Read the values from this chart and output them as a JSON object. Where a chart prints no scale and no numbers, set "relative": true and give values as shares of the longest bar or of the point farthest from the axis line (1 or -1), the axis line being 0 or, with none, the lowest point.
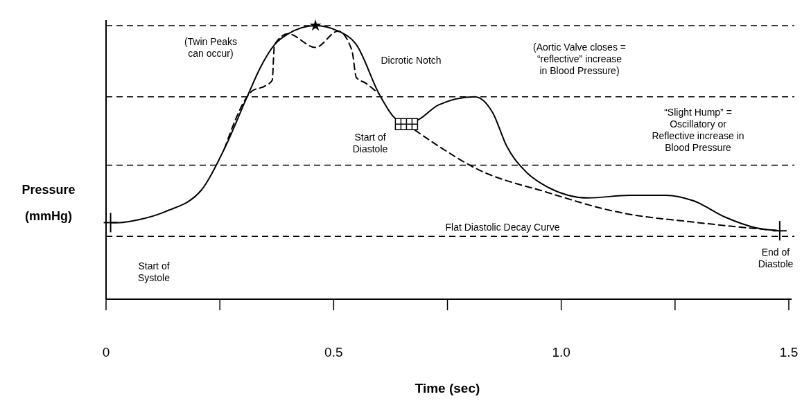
{
  "chart_data": {
    "type": "line",
    "relative": true,
    "xlabel": "Time (sec)",
    "ylabel": "Pressure\n(mmHg)",
    "xlim": [
      0,
      1.5
    ],
    "xticks": [
      0,
      {
        "value": 0.25,
        "label": null
      },
      0.5,
      {
        "value": 0.75,
        "label": null
      },
      {
        "value": 1.0,
        "label": "1.0"
      },
      {
        "value": 1.25,
        "label": null
      },
      1.5
    ],
    "marker": "none",
    "series": [
      {
        "color": "#000000",
        "line_style": "solid",
        "x": [
          0.01,
          0.03,
          0.07,
          0.13,
          0.21,
          0.26,
          0.31,
          0.34,
          0.37,
          0.4,
          0.46,
          0.51,
          0.55,
          0.6,
          0.63,
          0.66,
          0.69,
          0.73,
          0.81,
          0.85,
          0.88,
          0.92,
          0.97,
          1.06,
          1.15,
          1.23,
          1.29,
          1.36,
          1.43,
          1.48
        ],
        "values": [
          0.28,
          0.28,
          0.29,
          0.32,
          0.4,
          0.55,
          0.74,
          0.85,
          0.93,
          0.97,
          1.0,
          0.98,
          0.93,
          0.75,
          0.67,
          0.64,
          0.66,
          0.71,
          0.74,
          0.68,
          0.56,
          0.47,
          0.41,
          0.37,
          0.38,
          0.38,
          0.36,
          0.3,
          0.26,
          0.25
        ]
      },
      {
        "color": "#000000",
        "line_style": "dashed",
        "x": [
          0.26,
          0.31,
          0.32,
          0.35,
          0.365,
          0.37,
          0.4,
          0.46,
          0.51,
          0.54,
          0.55,
          0.57,
          0.6
        ],
        "values": [
          0.55,
          0.74,
          0.76,
          0.78,
          0.8,
          0.93,
          0.97,
          0.92,
          0.98,
          0.91,
          0.81,
          0.79,
          0.75
        ]
      },
      {
        "color": "#000000",
        "line_style": "dashed",
        "x": [
          0.66,
          0.73,
          0.81,
          0.97,
          1.12,
          1.3,
          1.48
        ],
        "values": [
          0.64,
          0.56,
          0.48,
          0.39,
          0.32,
          0.28,
          0.25
        ]
      }
    ],
    "ref_lines": [
      {
        "axis": "y",
        "value": 1.0,
        "color": "#000000",
        "line_style": "dashed"
      },
      {
        "axis": "y",
        "value": 0.74,
        "color": "#000000",
        "line_style": "dashed"
      },
      {
        "axis": "y",
        "value": 0.49,
        "color": "#000000",
        "line_style": "dashed"
      },
      {
        "axis": "y",
        "value": 0.23,
        "color": "#000000",
        "line_style": "dashed"
      }
    ],
    "annotations": [
      "(Twin Peaks\ncan occur)",
      "Dicrotic Notch",
      "(Aortic Valve closes =\n“reflective” increase\nin Blood Pressure)",
      "“Slight Hump” =\nOscillatory or\nReflective increase in\nBlood Pressure",
      "Start of\nDiastole",
      "Flat Diastolic Decay Curve",
      "Start of\nSystole",
      "End of\nDiastole"
    ]
  }
}
